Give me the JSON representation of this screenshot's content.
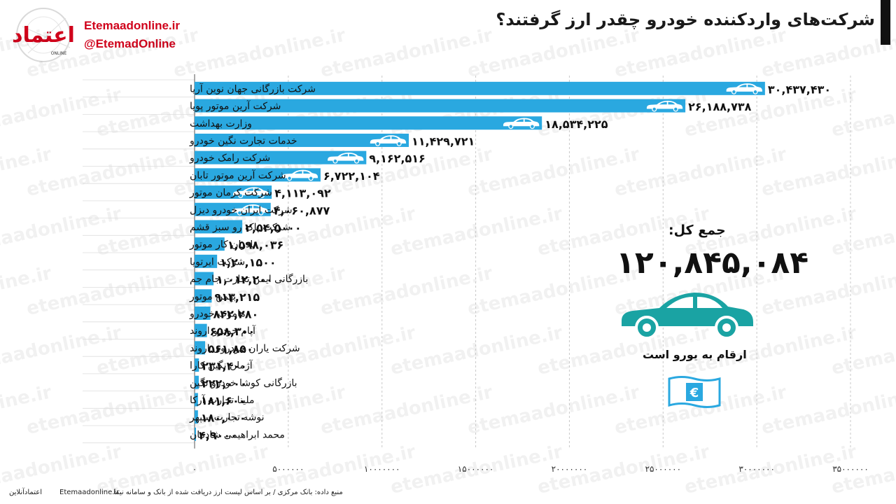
{
  "header": {
    "title": "شرکت‌های واردکننده خودرو چقدر ارز گرفتند؟",
    "site": "Etemaadonline.ir",
    "handle": "@EtemadOnline",
    "logo_text": "اعتماد",
    "logo_sub": "ONLINE"
  },
  "summary": {
    "total_label": "جمع کل:",
    "total_value": "۱۲۰,۸۴۵,۰۸۴",
    "unit_note": "ارقام به یورو است"
  },
  "footer": {
    "source": "منبع داده: بانک مرکزی / بر اساس لیست ارز دریافت شده از بانک و سامانه نیما",
    "site": "Etemaadonline.ir",
    "brand": "اعتمادآنلاین"
  },
  "colors": {
    "bar": "#2aa8e0",
    "teal": "#1aa3a3",
    "euro": "#2aa8e0",
    "title_bar": "#111111"
  },
  "chart_data": {
    "type": "bar",
    "orientation": "horizontal",
    "categories": [
      "شرکت بازرگانی جهان نوین آریا",
      "شرکت آرین موتور پویا",
      "وزارت بهداشت",
      "خدمات تجارت نگین خودرو",
      "شرکت رامک خودرو",
      "شرکت آرین موتور تابان",
      "شرکت کرمان موتور",
      "شرکت ایران خودرو دیزل",
      "شرکت پاک رو سبز قشم",
      "نادران کار موتور",
      "شرکت ایرتویا",
      "بازرگانی ایمن تجارت جام جم",
      "بهمن موتور",
      "ماموت خودرو",
      "آپام خودرو اروند",
      "شرکت یاران خودروی اروند",
      "آژمان نگین کارا",
      "بازرگانی کوشا خودرو نگین",
      "ملینا تجارت آرکا",
      "نوشه تجارت سپهر",
      "محمد ابراهیمی شادمان"
    ],
    "values": [
      30437430,
      26188738,
      18534225,
      11429721,
      9162516,
      6722104,
      4113092,
      4060877,
      2545000,
      1598036,
      1201500,
      1012200,
      913215,
      842280,
      658300,
      561850,
      231400,
      222000,
      181600,
      180000,
      49000
    ],
    "value_labels": [
      "۳۰,۴۳۷,۴۳۰",
      "۲۶,۱۸۸,۷۳۸",
      "۱۸,۵۳۴,۲۲۵",
      "۱۱,۴۲۹,۷۲۱",
      "۹,۱۶۲,۵۱۶",
      "۶,۷۲۲,۱۰۴",
      "۴,۱۱۳,۰۹۲",
      "۴,۰۶۰,۸۷۷",
      "۲,۵۴,۵۰۰۰",
      "۱,۵۹۸,۰۳۶",
      "۱,۲۰,۱۵۰۰",
      "۱,۰۱۲,۲۰۰",
      "۹۱۳,۲۱۵",
      "۸۴۲,۲۸۰",
      "۶۵۸,۳۰۰",
      "۵۶۱,۸۵۰",
      "۲۳۱,۴۰۰",
      "۲۲۲,۰۰۰",
      "۱۸۱,۶۰۰",
      "۱۸۰,۰۰۰",
      "۴,۹۰۰۰"
    ],
    "car_icon_on_top": 8,
    "xlim": [
      0,
      35000000
    ],
    "x_ticks": [
      0,
      5000000,
      10000000,
      15000000,
      20000000,
      25000000,
      30000000,
      35000000
    ],
    "x_tick_labels": [
      "۰",
      "۵۰۰۰۰۰۰",
      "۱۰۰۰۰۰۰۰",
      "۱۵۰۰۰۰۰۰",
      "۲۰۰۰۰۰۰۰",
      "۲۵۰۰۰۰۰۰",
      "۳۰۰۰۰۰۰۰",
      "۳۵۰۰۰۰۰۰"
    ],
    "grid": "vertical dashed",
    "legend": "none"
  }
}
